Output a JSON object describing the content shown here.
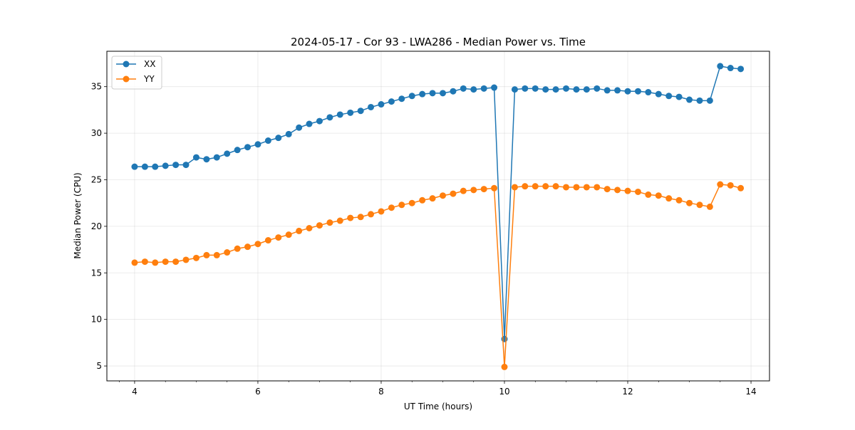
{
  "chart_data": {
    "type": "line",
    "title": "2024-05-17 - Cor 93 - LWA286 - Median Power vs. Time",
    "xlabel": "UT Time (hours)",
    "ylabel": "Median Power (CPU)",
    "xlim": [
      3.55,
      14.3
    ],
    "ylim": [
      3.4,
      38.8
    ],
    "xticks": [
      4,
      6,
      8,
      10,
      12,
      14
    ],
    "yticks": [
      5,
      10,
      15,
      20,
      25,
      30,
      35
    ],
    "grid": true,
    "legend_position": "top-left",
    "x": [
      4.0,
      4.167,
      4.333,
      4.5,
      4.667,
      4.833,
      5.0,
      5.167,
      5.333,
      5.5,
      5.667,
      5.833,
      6.0,
      6.167,
      6.333,
      6.5,
      6.667,
      6.833,
      7.0,
      7.167,
      7.333,
      7.5,
      7.667,
      7.833,
      8.0,
      8.167,
      8.333,
      8.5,
      8.667,
      8.833,
      9.0,
      9.167,
      9.333,
      9.5,
      9.667,
      9.833,
      10.0,
      10.167,
      10.333,
      10.5,
      10.667,
      10.833,
      11.0,
      11.167,
      11.333,
      11.5,
      11.667,
      11.833,
      12.0,
      12.167,
      12.333,
      12.5,
      12.667,
      12.833,
      13.0,
      13.167,
      13.333,
      13.5,
      13.667,
      13.833
    ],
    "series": [
      {
        "name": "XX",
        "color": "#1f77b4",
        "values": [
          26.4,
          26.4,
          26.4,
          26.5,
          26.6,
          26.6,
          27.4,
          27.2,
          27.4,
          27.8,
          28.2,
          28.5,
          28.8,
          29.2,
          29.5,
          29.9,
          30.6,
          31.0,
          31.3,
          31.7,
          32.0,
          32.2,
          32.4,
          32.8,
          33.1,
          33.4,
          33.7,
          34.0,
          34.2,
          34.3,
          34.3,
          34.5,
          34.8,
          34.7,
          34.8,
          34.9,
          7.9,
          34.7,
          34.8,
          34.8,
          34.7,
          34.7,
          34.8,
          34.7,
          34.7,
          34.8,
          34.6,
          34.6,
          34.5,
          34.5,
          34.4,
          34.2,
          34.0,
          33.9,
          33.6,
          33.5,
          33.5,
          37.2,
          37.0,
          36.9
        ]
      },
      {
        "name": "YY",
        "color": "#ff7f0e",
        "values": [
          16.1,
          16.2,
          16.1,
          16.2,
          16.2,
          16.4,
          16.6,
          16.9,
          16.9,
          17.2,
          17.6,
          17.8,
          18.1,
          18.5,
          18.8,
          19.1,
          19.5,
          19.8,
          20.1,
          20.4,
          20.6,
          20.9,
          21.0,
          21.3,
          21.6,
          22.0,
          22.3,
          22.5,
          22.8,
          23.0,
          23.3,
          23.5,
          23.8,
          23.9,
          24.0,
          24.1,
          4.9,
          24.2,
          24.3,
          24.3,
          24.3,
          24.3,
          24.2,
          24.2,
          24.2,
          24.2,
          24.0,
          23.9,
          23.8,
          23.7,
          23.4,
          23.3,
          23.0,
          22.8,
          22.5,
          22.3,
          22.1,
          24.5,
          24.4,
          24.1
        ]
      }
    ]
  }
}
